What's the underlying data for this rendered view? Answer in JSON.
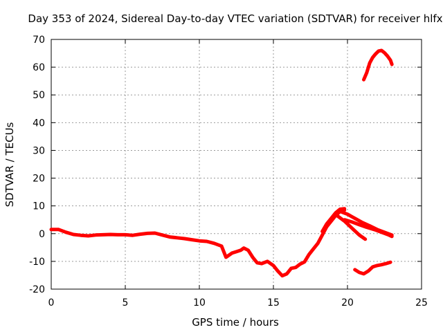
{
  "chart_data": {
    "type": "line",
    "title": "Day 353 of 2024, Sidereal Day-to-day VTEC variation (SDTVAR) for receiver hlfx",
    "xlabel": "GPS time / hours",
    "ylabel": "SDTVAR / TECUs",
    "xlim": [
      0,
      25
    ],
    "ylim": [
      -20,
      70
    ],
    "xticks": [
      "0",
      "5",
      "10",
      "15",
      "20",
      "25"
    ],
    "yticks": [
      "-20",
      "-10",
      "0",
      "10",
      "20",
      "30",
      "40",
      "50",
      "60",
      "70"
    ],
    "grid": true,
    "line_color": "#ff0000",
    "series": [
      {
        "name": "main-track",
        "x": [
          0,
          0.5,
          1,
          1.5,
          2,
          2.5,
          3,
          3.5,
          4,
          4.5,
          5,
          5.5,
          6,
          6.5,
          7,
          7.5,
          8,
          8.5,
          9,
          9.5,
          10,
          10.5,
          11,
          11.5,
          11.8,
          12.2,
          12.5,
          12.8,
          13,
          13.3,
          13.6,
          13.9,
          14.2,
          14.6,
          15,
          15.3,
          15.6,
          15.9,
          16.2,
          16.5,
          16.8,
          17.1,
          17.4,
          17.7,
          18,
          18.3,
          18.6,
          18.9,
          19.2,
          19.5,
          19.8
        ],
        "values": [
          1.5,
          1.5,
          0.5,
          -0.3,
          -0.6,
          -0.8,
          -0.5,
          -0.4,
          -0.3,
          -0.4,
          -0.4,
          -0.6,
          -0.2,
          0.1,
          0.2,
          -0.5,
          -1.2,
          -1.5,
          -1.8,
          -2.2,
          -2.6,
          -2.8,
          -3.5,
          -4.5,
          -8.5,
          -7.0,
          -6.5,
          -6.0,
          -5.2,
          -6.0,
          -8.5,
          -10.5,
          -10.8,
          -10.0,
          -11.5,
          -13.5,
          -15.2,
          -14.5,
          -12.5,
          -12.2,
          -11.0,
          -10.2,
          -7.5,
          -5.5,
          -3.5,
          -0.5,
          2.5,
          4.5,
          6.5,
          8.0,
          8.5
        ]
      },
      {
        "name": "main-track-upper",
        "x": [
          18.3,
          18.6,
          18.9,
          19.2,
          19.5,
          19.8
        ],
        "values": [
          0.8,
          3.5,
          5.5,
          7.5,
          8.8,
          9.0
        ]
      },
      {
        "name": "descending-band-1",
        "x": [
          19.5,
          20,
          20.5,
          21,
          21.5,
          22,
          22.5,
          23
        ],
        "values": [
          8.0,
          7.0,
          5.5,
          4.0,
          2.8,
          1.5,
          0.5,
          -0.5
        ]
      },
      {
        "name": "descending-band-2",
        "x": [
          19.3,
          19.8,
          20.3,
          20.8,
          21.2
        ],
        "values": [
          6.5,
          4.5,
          2.0,
          -0.5,
          -2.0
        ]
      },
      {
        "name": "descending-band-3",
        "x": [
          19.8,
          20.3,
          20.8,
          21.3,
          21.8,
          22.3,
          22.8,
          23
        ],
        "values": [
          5.0,
          4.2,
          3.2,
          2.3,
          1.5,
          0.5,
          -0.5,
          -1.0
        ]
      },
      {
        "name": "high-arc",
        "x": [
          21.1,
          21.3,
          21.5,
          21.7,
          21.9,
          22.1,
          22.3,
          22.5,
          22.7,
          22.9,
          23.0
        ],
        "values": [
          55.5,
          58.0,
          61.5,
          63.5,
          64.8,
          65.8,
          66.0,
          65.2,
          64.0,
          62.5,
          61.0
        ]
      },
      {
        "name": "low-segment",
        "x": [
          20.5,
          20.8,
          21.1,
          21.4,
          21.7,
          22.0,
          22.3,
          22.6,
          22.9
        ],
        "values": [
          -13.0,
          -14.0,
          -14.5,
          -13.5,
          -12.0,
          -11.5,
          -11.2,
          -10.8,
          -10.3
        ]
      }
    ]
  }
}
